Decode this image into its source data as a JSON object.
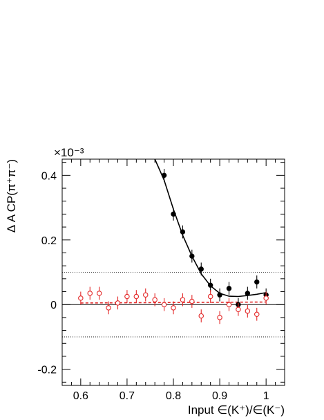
{
  "chart_data": {
    "type": "scatter",
    "title": "",
    "xlabel": "Input ∈(K⁺)/∈(K⁻)",
    "ylabel": "Δ A CP(π⁺π⁻)",
    "y_multiplier": "×10⁻³",
    "xlim": [
      0.56,
      1.04
    ],
    "ylim": [
      -0.25,
      0.45
    ],
    "x_ticks": [
      0.6,
      0.7,
      0.8,
      0.9,
      1.0
    ],
    "x_tick_labels": [
      "0.6",
      "0.7",
      "0.8",
      "0.9",
      "1"
    ],
    "y_ticks": [
      -0.2,
      0.0,
      0.2,
      0.4
    ],
    "y_tick_labels": [
      "-0.2",
      "0",
      "0.2",
      "0.4"
    ],
    "reference_lines": [
      0.1,
      -0.1
    ],
    "series": [
      {
        "marker": "filled-circle",
        "color": "#000000",
        "x": [
          0.78,
          0.8,
          0.82,
          0.84,
          0.86,
          0.88,
          0.9,
          0.92,
          0.94,
          0.96,
          0.98,
          1.0
        ],
        "y": [
          0.4,
          0.28,
          0.225,
          0.15,
          0.11,
          0.06,
          0.03,
          0.05,
          0.0,
          0.035,
          0.07,
          0.03
        ],
        "err": [
          0.02,
          0.02,
          0.02,
          0.02,
          0.02,
          0.02,
          0.02,
          0.02,
          0.02,
          0.02,
          0.02,
          0.02
        ]
      },
      {
        "marker": "open-circle",
        "color": "#e32626",
        "x": [
          0.6,
          0.62,
          0.64,
          0.66,
          0.68,
          0.7,
          0.72,
          0.74,
          0.76,
          0.78,
          0.8,
          0.82,
          0.84,
          0.86,
          0.88,
          0.9,
          0.92,
          0.94,
          0.96,
          0.98,
          1.0
        ],
        "y": [
          0.02,
          0.035,
          0.035,
          -0.01,
          0.005,
          0.025,
          0.025,
          0.03,
          0.015,
          0.0,
          -0.01,
          0.015,
          0.01,
          -0.035,
          0.025,
          -0.04,
          0.0,
          -0.015,
          -0.02,
          -0.03,
          0.02
        ],
        "err": [
          0.02,
          0.02,
          0.02,
          0.02,
          0.02,
          0.02,
          0.02,
          0.02,
          0.02,
          0.02,
          0.02,
          0.02,
          0.02,
          0.02,
          0.02,
          0.02,
          0.02,
          0.02,
          0.02,
          0.02,
          0.02
        ]
      }
    ],
    "fits": [
      {
        "color": "#000000",
        "style": "solid",
        "x": [
          0.76,
          0.78,
          0.8,
          0.82,
          0.84,
          0.86,
          0.88,
          0.9,
          0.92,
          0.94,
          0.96,
          0.98,
          1.0
        ],
        "y": [
          0.46,
          0.385,
          0.295,
          0.215,
          0.15,
          0.095,
          0.058,
          0.035,
          0.026,
          0.025,
          0.028,
          0.032,
          0.037
        ]
      },
      {
        "color": "#e32626",
        "style": "dashed",
        "x": [
          0.6,
          1.0
        ],
        "y": [
          0.005,
          0.008
        ]
      }
    ]
  }
}
